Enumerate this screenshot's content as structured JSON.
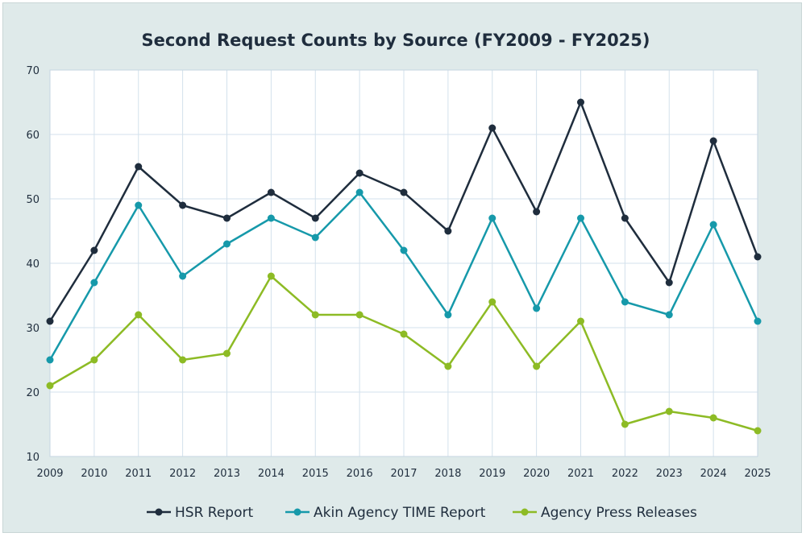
{
  "chart_data": {
    "type": "line",
    "title": "Second Request Counts by Source (FY2009 - FY2025)",
    "xlabel": "",
    "ylabel": "",
    "x": [
      2009,
      2010,
      2011,
      2012,
      2013,
      2014,
      2015,
      2016,
      2017,
      2018,
      2019,
      2020,
      2021,
      2022,
      2023,
      2024,
      2025
    ],
    "ylim": [
      10,
      70
    ],
    "yticks": [
      10,
      20,
      30,
      40,
      50,
      60,
      70
    ],
    "grid": true,
    "legend_position": "bottom",
    "series": [
      {
        "name": "HSR Report",
        "color": "#1f2d3d",
        "values": [
          31,
          42,
          55,
          49,
          47,
          51,
          47,
          54,
          51,
          45,
          61,
          48,
          65,
          47,
          37,
          59,
          41
        ]
      },
      {
        "name": "Akin Agency TIME Report",
        "color": "#1699aa",
        "values": [
          25,
          37,
          49,
          38,
          43,
          47,
          44,
          51,
          42,
          32,
          47,
          33,
          47,
          34,
          32,
          46,
          31
        ]
      },
      {
        "name": "Agency Press Releases",
        "color": "#8dbb25",
        "values": [
          21,
          25,
          32,
          25,
          26,
          38,
          32,
          32,
          29,
          24,
          34,
          24,
          31,
          15,
          17,
          16,
          14
        ]
      }
    ]
  }
}
